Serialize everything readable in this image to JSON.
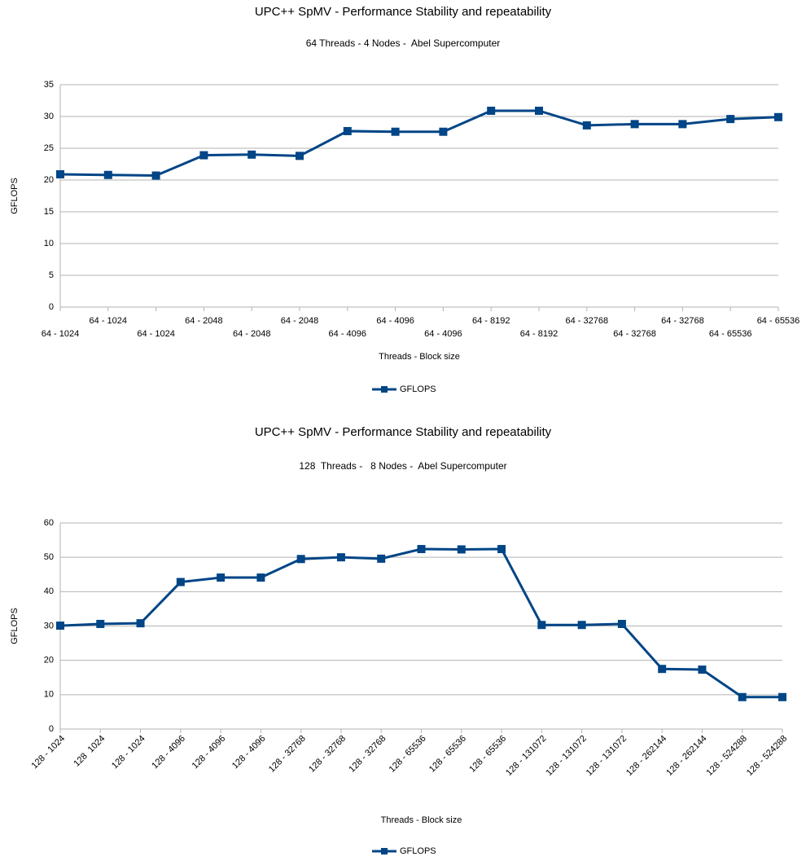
{
  "chart_data": [
    {
      "type": "line",
      "title": "UPC++ SpMV - Performance Stability and repeatability",
      "subtitle": "64 Threads - 4 Nodes -  Abel Supercomputer",
      "x_label": "Threads - Block size",
      "y_label": "GFLOPS",
      "categories": [
        "64 - 1024",
        "64 - 1024",
        "64 - 1024",
        "64 - 2048",
        "64 - 2048",
        "64 - 2048",
        "64 - 4096",
        "64 - 4096",
        "64 - 4096",
        "64 - 8192",
        "64 - 8192",
        "64 - 32768",
        "64 - 32768",
        "64 - 32768",
        "64 - 65536",
        "64 - 65536"
      ],
      "series": [
        {
          "name": "GFLOPS",
          "color": "#004586",
          "values": [
            20.9,
            20.8,
            20.7,
            23.9,
            24.0,
            23.8,
            27.7,
            27.6,
            27.6,
            30.9,
            30.9,
            28.6,
            28.8,
            28.8,
            29.6,
            29.9
          ]
        }
      ],
      "ylim": [
        0,
        35
      ],
      "yticks": [
        0,
        5,
        10,
        15,
        20,
        25,
        30,
        35
      ],
      "grid": true,
      "legend": "bottom"
    },
    {
      "type": "line",
      "title": "UPC++ SpMV - Performance Stability and repeatability",
      "subtitle": "128  Threads -   8 Nodes -  Abel Supercomputer",
      "x_label": "Threads - Block size",
      "y_label": "GFLOPS",
      "categories": [
        "128 - 1024",
        "128  1024",
        "128 - 1024",
        "128 - 4096",
        "128 - 4096",
        "128 - 4096",
        "128 - 32768",
        "128 - 32768",
        "128 - 32768",
        "128 - 65536",
        "128 - 65536",
        "128 - 65536",
        "128 - 131072",
        "128 - 131072",
        "128 - 131072",
        "128 - 262144",
        "128 - 262144",
        "128 - 524288",
        "128 - 524288"
      ],
      "series": [
        {
          "name": "GFLOPS",
          "color": "#004586",
          "values": [
            30.1,
            30.6,
            30.8,
            42.8,
            44.1,
            44.1,
            49.5,
            50.0,
            49.6,
            52.4,
            52.3,
            52.4,
            30.3,
            30.3,
            30.6,
            17.5,
            17.3,
            9.3,
            9.3
          ]
        }
      ],
      "ylim": [
        0,
        60
      ],
      "yticks": [
        0,
        10,
        20,
        30,
        40,
        50,
        60
      ],
      "grid": true,
      "legend": "bottom"
    }
  ]
}
